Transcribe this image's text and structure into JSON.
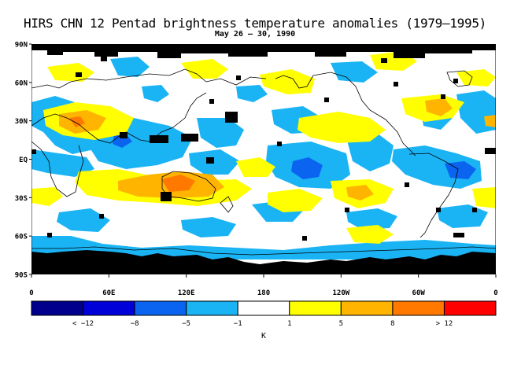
{
  "figure": {
    "title": "HIRS CHN 12 Pentad brightness temperature anomalies (1979–1995)",
    "subtitle": "May 26 – 30, 1990"
  },
  "map": {
    "projection": "cylindrical equidistant",
    "lon_range": [
      0,
      360
    ],
    "lat_range": [
      -90,
      90
    ],
    "lat_labels": [
      "90N",
      "60N",
      "30N",
      "EQ",
      "30S",
      "60S",
      "90S"
    ],
    "lon_labels": [
      "0",
      "60E",
      "120E",
      "180",
      "120W",
      "60W",
      "0"
    ],
    "missing_data_color": "#000000"
  },
  "colorbar": {
    "unit": "K",
    "colors": [
      "#00008c",
      "#0000d8",
      "#0a64f0",
      "#1ab4f5",
      "#ffffff",
      "#ffff00",
      "#ffb400",
      "#ff7800",
      "#ff0000"
    ],
    "labels": [
      "< −12",
      "−8",
      "−5",
      "−1",
      "1",
      "5",
      "8",
      "> 12"
    ]
  },
  "chart_data": {
    "type": "heatmap",
    "title": "HIRS CHN 12 Pentad brightness temperature anomalies (1979–1995)",
    "subtitle": "May 26 – 30, 1990",
    "xlabel": "",
    "ylabel": "",
    "x_ticks": [
      "0",
      "60E",
      "120E",
      "180",
      "120W",
      "60W",
      "0"
    ],
    "y_ticks": [
      "90N",
      "60N",
      "30N",
      "EQ",
      "30S",
      "60S",
      "90S"
    ],
    "color_levels": [
      -12,
      -8,
      -5,
      -1,
      1,
      5,
      8,
      12
    ],
    "unit": "K",
    "anomaly_regions": [
      {
        "lon": [
          30,
          90
        ],
        "lat": [
          15,
          35
        ],
        "anomaly": "warm",
        "class": "5 to 8"
      },
      {
        "lon": [
          60,
          120
        ],
        "lat": [
          0,
          20
        ],
        "anomaly": "cold",
        "class": "-5 to -1"
      },
      {
        "lon": [
          110,
          160
        ],
        "lat": [
          -15,
          -35
        ],
        "anomaly": "warm",
        "class": "5 to 8"
      },
      {
        "lon": [
          140,
          160
        ],
        "lat": [
          -20,
          -28
        ],
        "anomaly": "warm",
        "class": "8 to 12"
      },
      {
        "lon": [
          200,
          230
        ],
        "lat": [
          -5,
          -20
        ],
        "anomaly": "cold",
        "class": "-8 to -5"
      },
      {
        "lon": [
          190,
          260
        ],
        "lat": [
          10,
          40
        ],
        "anomaly": "warm",
        "class": "1 to 5"
      },
      {
        "lon": [
          300,
          340
        ],
        "lat": [
          -5,
          -25
        ],
        "anomaly": "cold",
        "class": "-8 to -5"
      },
      {
        "lon": [
          200,
          300
        ],
        "lat": [
          -25,
          -60
        ],
        "anomaly": "warm",
        "class": "1 to 5"
      },
      {
        "lon": [
          0,
          360
        ],
        "lat": [
          -70,
          -90
        ],
        "anomaly": "missing",
        "class": "no data"
      }
    ]
  }
}
